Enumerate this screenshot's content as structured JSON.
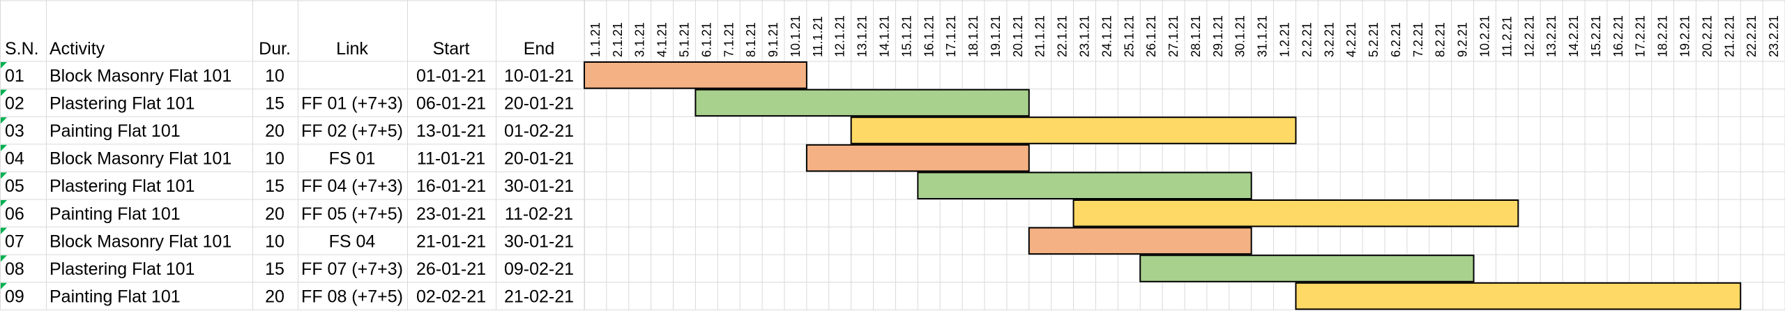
{
  "table": {
    "headers": {
      "sn": "S.N.",
      "activity": "Activity",
      "duration": "Dur.",
      "link": "Link",
      "start": "Start",
      "end": "End"
    },
    "rows": [
      {
        "sn": "01",
        "activity": "Block Masonry Flat 101",
        "duration": "10",
        "link": "",
        "start": "01-01-21",
        "end": "10-01-21",
        "color_key": "masonry"
      },
      {
        "sn": "02",
        "activity": "Plastering Flat 101",
        "duration": "15",
        "link": "FF 01 (+7+3)",
        "start": "06-01-21",
        "end": "20-01-21",
        "color_key": "plastering"
      },
      {
        "sn": "03",
        "activity": "Painting Flat 101",
        "duration": "20",
        "link": "FF 02 (+7+5)",
        "start": "13-01-21",
        "end": "01-02-21",
        "color_key": "painting"
      },
      {
        "sn": "04",
        "activity": "Block Masonry Flat 101",
        "duration": "10",
        "link": "FS 01",
        "start": "11-01-21",
        "end": "20-01-21",
        "color_key": "masonry"
      },
      {
        "sn": "05",
        "activity": "Plastering Flat 101",
        "duration": "15",
        "link": "FF 04 (+7+3)",
        "start": "16-01-21",
        "end": "30-01-21",
        "color_key": "plastering"
      },
      {
        "sn": "06",
        "activity": "Painting Flat 101",
        "duration": "20",
        "link": "FF 05 (+7+5)",
        "start": "23-01-21",
        "end": "11-02-21",
        "color_key": "painting"
      },
      {
        "sn": "07",
        "activity": "Block Masonry Flat 101",
        "duration": "10",
        "link": "FS 04",
        "start": "21-01-21",
        "end": "30-01-21",
        "color_key": "masonry"
      },
      {
        "sn": "08",
        "activity": "Plastering Flat 101",
        "duration": "15",
        "link": "FF 07 (+7+3)",
        "start": "26-01-21",
        "end": "09-02-21",
        "color_key": "plastering"
      },
      {
        "sn": "09",
        "activity": "Painting Flat 101",
        "duration": "20",
        "link": "FF 08 (+7+5)",
        "start": "02-02-21",
        "end": "21-02-21",
        "color_key": "painting"
      }
    ]
  },
  "chart_data": {
    "type": "gantt",
    "date_columns": [
      "1.1.21",
      "2.1.21",
      "3.1.21",
      "4.1.21",
      "5.1.21",
      "6.1.21",
      "7.1.21",
      "8.1.21",
      "9.1.21",
      "10.1.21",
      "11.1.21",
      "12.1.21",
      "13.1.21",
      "14.1.21",
      "15.1.21",
      "16.1.21",
      "17.1.21",
      "18.1.21",
      "19.1.21",
      "20.1.21",
      "21.1.21",
      "22.1.21",
      "23.1.21",
      "24.1.21",
      "25.1.21",
      "26.1.21",
      "27.1.21",
      "28.1.21",
      "29.1.21",
      "30.1.21",
      "31.1.21",
      "1.2.21",
      "2.2.21",
      "3.2.21",
      "4.2.21",
      "5.2.21",
      "6.2.21",
      "7.2.21",
      "8.2.21",
      "9.2.21",
      "10.2.21",
      "11.2.21",
      "12.2.21",
      "13.2.21",
      "14.2.21",
      "15.2.21",
      "16.2.21",
      "17.2.21",
      "18.2.21",
      "19.2.21",
      "20.2.21",
      "21.2.21",
      "22.2.21",
      "23.2.21"
    ],
    "tasks": [
      {
        "sn": "01",
        "start": "1.1.21",
        "end": "10.1.21",
        "color_key": "masonry"
      },
      {
        "sn": "02",
        "start": "6.1.21",
        "end": "20.1.21",
        "color_key": "plastering"
      },
      {
        "sn": "03",
        "start": "13.1.21",
        "end": "1.2.21",
        "color_key": "painting"
      },
      {
        "sn": "04",
        "start": "11.1.21",
        "end": "20.1.21",
        "color_key": "masonry"
      },
      {
        "sn": "05",
        "start": "16.1.21",
        "end": "30.1.21",
        "color_key": "plastering"
      },
      {
        "sn": "06",
        "start": "23.1.21",
        "end": "11.2.21",
        "color_key": "painting"
      },
      {
        "sn": "07",
        "start": "21.1.21",
        "end": "30.1.21",
        "color_key": "masonry"
      },
      {
        "sn": "08",
        "start": "26.1.21",
        "end": "9.2.21",
        "color_key": "plastering"
      },
      {
        "sn": "09",
        "start": "2.2.21",
        "end": "21.2.21",
        "color_key": "painting"
      }
    ],
    "grid": true
  },
  "colors": {
    "masonry": "#f4b183",
    "plastering": "#a9d18e",
    "painting": "#ffd966",
    "gridline": "#d9d9d9",
    "bar_border": "#000000",
    "comment_marker": "#00b050"
  }
}
